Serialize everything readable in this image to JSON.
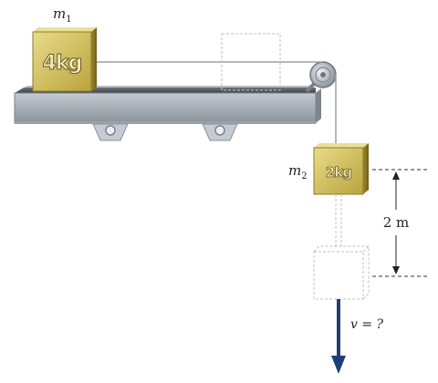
{
  "blocks": {
    "m1": {
      "label": "4kg",
      "name": "m",
      "subscript": "1"
    },
    "m2": {
      "label": "2kg",
      "name": "m",
      "subscript": "2"
    }
  },
  "distance": {
    "label": "2 m"
  },
  "velocity": {
    "label": "v = ?"
  },
  "colors": {
    "block_face": "#d9c96a",
    "block_dark": "#8f7b22",
    "table": "#8e97a2",
    "arrow": "#1f3f78",
    "dashed": "#bdbdbd"
  }
}
